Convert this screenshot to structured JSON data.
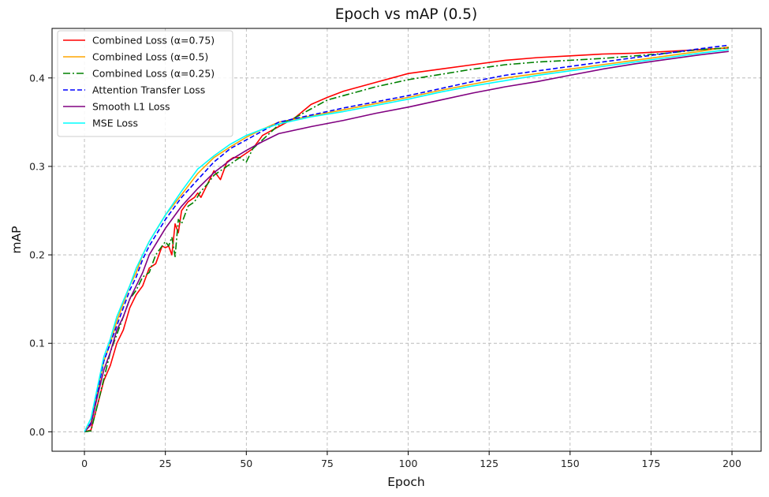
{
  "chart_data": {
    "type": "line",
    "title": "Epoch vs mAP (0.5)",
    "xlabel": "Epoch",
    "ylabel": "mAP",
    "xlim": [
      -10,
      209
    ],
    "ylim": [
      -0.022,
      0.456
    ],
    "xticks": [
      0,
      25,
      50,
      75,
      100,
      125,
      150,
      175,
      200
    ],
    "yticks": [
      0.0,
      0.1,
      0.2,
      0.3,
      0.4
    ],
    "xtick_labels": [
      "0",
      "25",
      "50",
      "75",
      "100",
      "125",
      "150",
      "175",
      "200"
    ],
    "ytick_labels": [
      "0.0",
      "0.1",
      "0.2",
      "0.3",
      "0.4"
    ],
    "grid": true,
    "legend_position": "top-left",
    "series": [
      {
        "name": "Combined Loss (α=0.75)",
        "color": "#ff0000",
        "dash": "solid",
        "x": [
          0,
          2,
          4,
          6,
          8,
          10,
          12,
          14,
          16,
          18,
          20,
          22,
          24,
          25,
          26,
          27,
          28,
          29,
          30,
          32,
          34,
          35,
          36,
          38,
          40,
          42,
          44,
          46,
          48,
          50,
          52,
          55,
          60,
          65,
          70,
          75,
          80,
          85,
          90,
          95,
          100,
          110,
          120,
          130,
          140,
          150,
          160,
          170,
          180,
          190,
          199
        ],
        "y": [
          0.0,
          0.002,
          0.03,
          0.058,
          0.075,
          0.1,
          0.115,
          0.14,
          0.155,
          0.165,
          0.185,
          0.19,
          0.21,
          0.208,
          0.21,
          0.2,
          0.235,
          0.225,
          0.25,
          0.26,
          0.265,
          0.27,
          0.265,
          0.28,
          0.295,
          0.285,
          0.305,
          0.31,
          0.31,
          0.315,
          0.32,
          0.335,
          0.345,
          0.355,
          0.37,
          0.378,
          0.385,
          0.39,
          0.395,
          0.4,
          0.405,
          0.41,
          0.415,
          0.42,
          0.423,
          0.425,
          0.427,
          0.428,
          0.43,
          0.432,
          0.434
        ]
      },
      {
        "name": "Combined Loss (α=0.5)",
        "color": "#ffa500",
        "dash": "solid",
        "x": [
          0,
          2,
          4,
          6,
          8,
          10,
          12,
          14,
          16,
          18,
          20,
          25,
          30,
          35,
          40,
          45,
          50,
          55,
          60,
          70,
          80,
          90,
          100,
          110,
          120,
          130,
          140,
          150,
          160,
          170,
          180,
          190,
          199
        ],
        "y": [
          0.0,
          0.01,
          0.045,
          0.08,
          0.1,
          0.125,
          0.145,
          0.165,
          0.18,
          0.2,
          0.215,
          0.245,
          0.268,
          0.292,
          0.31,
          0.322,
          0.333,
          0.342,
          0.35,
          0.357,
          0.364,
          0.371,
          0.378,
          0.386,
          0.393,
          0.4,
          0.405,
          0.41,
          0.415,
          0.42,
          0.425,
          0.43,
          0.435
        ]
      },
      {
        "name": "Combined Loss (α=0.25)",
        "color": "#008000",
        "dash": "dashdot",
        "x": [
          0,
          2,
          4,
          6,
          8,
          10,
          12,
          14,
          16,
          18,
          20,
          22,
          24,
          25,
          26,
          27,
          28,
          29,
          30,
          32,
          34,
          36,
          38,
          40,
          42,
          44,
          46,
          48,
          50,
          52,
          55,
          60,
          65,
          70,
          75,
          80,
          90,
          100,
          110,
          120,
          130,
          140,
          150,
          160,
          170,
          180,
          190,
          199
        ],
        "y": [
          0.0,
          0.001,
          0.03,
          0.06,
          0.09,
          0.11,
          0.13,
          0.15,
          0.16,
          0.175,
          0.18,
          0.2,
          0.21,
          0.215,
          0.21,
          0.22,
          0.198,
          0.24,
          0.235,
          0.255,
          0.26,
          0.272,
          0.28,
          0.29,
          0.295,
          0.3,
          0.305,
          0.31,
          0.305,
          0.32,
          0.33,
          0.347,
          0.355,
          0.365,
          0.375,
          0.38,
          0.39,
          0.398,
          0.404,
          0.41,
          0.415,
          0.418,
          0.42,
          0.422,
          0.425,
          0.428,
          0.432,
          0.434
        ]
      },
      {
        "name": "Attention Transfer Loss",
        "color": "#0000ff",
        "dash": "dashed",
        "x": [
          0,
          2,
          4,
          6,
          8,
          10,
          12,
          14,
          16,
          18,
          20,
          25,
          30,
          35,
          40,
          45,
          50,
          55,
          60,
          70,
          80,
          90,
          100,
          110,
          120,
          130,
          140,
          150,
          160,
          170,
          180,
          190,
          199
        ],
        "y": [
          0.0,
          0.01,
          0.045,
          0.08,
          0.1,
          0.12,
          0.14,
          0.16,
          0.175,
          0.195,
          0.21,
          0.24,
          0.265,
          0.285,
          0.305,
          0.32,
          0.33,
          0.34,
          0.35,
          0.358,
          0.366,
          0.373,
          0.38,
          0.388,
          0.396,
          0.403,
          0.408,
          0.413,
          0.418,
          0.423,
          0.428,
          0.433,
          0.437
        ]
      },
      {
        "name": "Smooth L1 Loss",
        "color": "#800080",
        "dash": "solid",
        "x": [
          0,
          2,
          4,
          6,
          8,
          10,
          12,
          14,
          16,
          18,
          20,
          25,
          30,
          35,
          40,
          45,
          50,
          55,
          60,
          70,
          80,
          90,
          100,
          110,
          120,
          130,
          140,
          150,
          160,
          170,
          180,
          190,
          199
        ],
        "y": [
          0.0,
          0.008,
          0.04,
          0.07,
          0.09,
          0.115,
          0.13,
          0.15,
          0.165,
          0.18,
          0.2,
          0.23,
          0.255,
          0.275,
          0.293,
          0.307,
          0.318,
          0.328,
          0.337,
          0.345,
          0.352,
          0.36,
          0.367,
          0.375,
          0.383,
          0.39,
          0.396,
          0.403,
          0.41,
          0.416,
          0.421,
          0.426,
          0.43
        ]
      },
      {
        "name": "MSE Loss",
        "color": "#00ffff",
        "dash": "solid",
        "x": [
          0,
          2,
          4,
          6,
          8,
          10,
          12,
          14,
          16,
          18,
          20,
          25,
          30,
          35,
          40,
          45,
          50,
          55,
          60,
          70,
          80,
          90,
          100,
          110,
          120,
          130,
          140,
          150,
          160,
          170,
          180,
          190,
          199
        ],
        "y": [
          0.0,
          0.015,
          0.05,
          0.085,
          0.105,
          0.13,
          0.148,
          0.165,
          0.185,
          0.2,
          0.215,
          0.245,
          0.272,
          0.297,
          0.312,
          0.325,
          0.335,
          0.342,
          0.348,
          0.356,
          0.362,
          0.369,
          0.376,
          0.384,
          0.391,
          0.397,
          0.403,
          0.408,
          0.413,
          0.418,
          0.423,
          0.428,
          0.432
        ]
      }
    ]
  }
}
